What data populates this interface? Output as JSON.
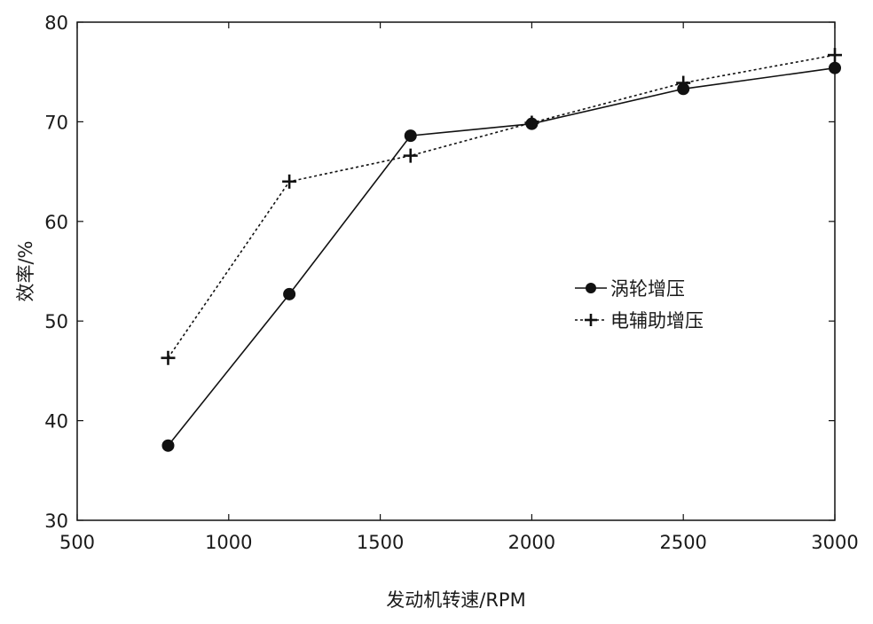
{
  "chart_data": {
    "type": "line",
    "title": "",
    "xlabel": "发动机转速/RPM",
    "ylabel": "效率/%",
    "xlim": [
      500,
      3000
    ],
    "ylim": [
      30,
      80
    ],
    "xticks": [
      500,
      1000,
      1500,
      2000,
      2500,
      3000
    ],
    "yticks": [
      30,
      40,
      50,
      60,
      70,
      80
    ],
    "xtick_labels": [
      "500",
      "1000",
      "1500",
      "2000",
      "2500",
      "3000"
    ],
    "ytick_labels": [
      "30",
      "40",
      "50",
      "60",
      "70",
      "80"
    ],
    "grid": false,
    "legend_position": "right",
    "series": [
      {
        "name": "涡轮增压",
        "marker": "circle",
        "line_style": "solid",
        "color": "#111111",
        "x": [
          800,
          1200,
          1600,
          2000,
          2500,
          3000
        ],
        "y": [
          37.5,
          52.7,
          68.6,
          69.8,
          73.3,
          75.4
        ]
      },
      {
        "name": "电辅助增压",
        "marker": "plus",
        "line_style": "dotted",
        "color": "#111111",
        "x": [
          800,
          1200,
          1600,
          2000,
          2500,
          3000
        ],
        "y": [
          46.3,
          64.0,
          66.6,
          69.9,
          73.9,
          76.7
        ]
      }
    ]
  }
}
